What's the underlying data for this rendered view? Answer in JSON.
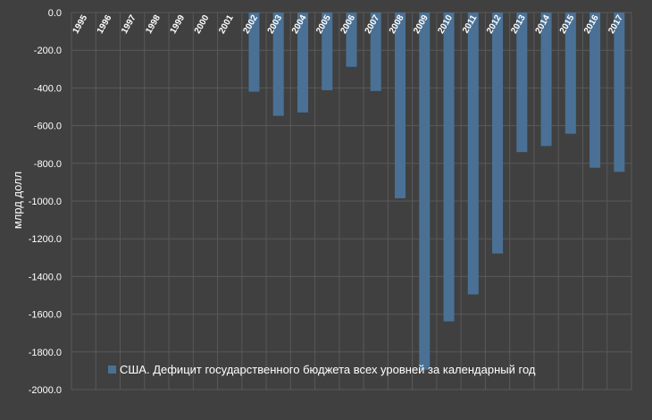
{
  "chart_data": {
    "type": "bar",
    "categories": [
      "1995",
      "1996",
      "1997",
      "1998",
      "1999",
      "2000",
      "2001",
      "2002",
      "2003",
      "2004",
      "2005",
      "2006",
      "2007",
      "2008",
      "2009",
      "2010",
      "2011",
      "2012",
      "2013",
      "2014",
      "2015",
      "2016",
      "2017"
    ],
    "series": [
      {
        "name": "США. Дефицит государственного бюджета всех уровней за календарный год",
        "values": [
          0,
          0,
          0,
          0,
          0,
          0,
          0,
          -420,
          -548,
          -530,
          -412,
          -288,
          -416,
          -985,
          -1895,
          -1638,
          -1495,
          -1278,
          -740,
          -708,
          -643,
          -823,
          -845
        ]
      }
    ],
    "title": "",
    "xlabel": "",
    "ylabel": "млрд долл",
    "ylim": [
      -2000,
      0
    ],
    "yticks": [
      "0.0",
      "-200.0",
      "-400.0",
      "-600.0",
      "-800.0",
      "-1000.0",
      "-1200.0",
      "-1400.0",
      "-1600.0",
      "-1800.0",
      "-2000.0"
    ],
    "grid": true,
    "legend_position": "bottom-inside",
    "colors": {
      "background": "#404040",
      "bar": "#4a7195",
      "grid": "#595959",
      "text": "#ffffff"
    }
  }
}
